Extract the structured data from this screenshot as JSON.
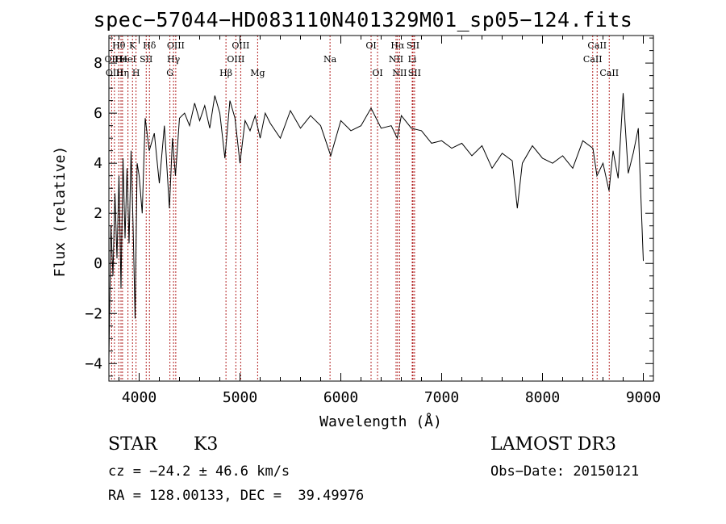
{
  "chart_data": {
    "type": "line",
    "title": "spec−57044−HD083110N401329M01_sp05−124.fits",
    "xlabel": "Wavelength (Å)",
    "ylabel": "Flux (relative)",
    "xlim": [
      3700,
      9100
    ],
    "ylim": [
      -4.7,
      9.1
    ],
    "xticks": [
      4000,
      5000,
      6000,
      7000,
      8000,
      9000
    ],
    "xtick_labels": [
      "4000",
      "5000",
      "6000",
      "7000",
      "8000",
      "9000"
    ],
    "yticks": [
      -4,
      -2,
      0,
      2,
      4,
      6,
      8
    ],
    "ytick_labels": [
      "−4",
      "−2",
      "0",
      "2",
      "4",
      "6",
      "8"
    ],
    "series": [
      {
        "name": "flux",
        "x": [
          3700,
          3720,
          3740,
          3760,
          3780,
          3800,
          3820,
          3840,
          3860,
          3880,
          3900,
          3920,
          3940,
          3960,
          3980,
          4000,
          4030,
          4060,
          4100,
          4150,
          4200,
          4250,
          4300,
          4330,
          4360,
          4400,
          4450,
          4500,
          4550,
          4600,
          4650,
          4700,
          4750,
          4800,
          4850,
          4900,
          4950,
          5000,
          5050,
          5100,
          5150,
          5200,
          5250,
          5300,
          5400,
          5500,
          5600,
          5700,
          5800,
          5900,
          6000,
          6100,
          6200,
          6300,
          6400,
          6500,
          6560,
          6600,
          6700,
          6800,
          6900,
          7000,
          7100,
          7200,
          7300,
          7400,
          7500,
          7600,
          7700,
          7750,
          7800,
          7900,
          8000,
          8100,
          8200,
          8300,
          8400,
          8500,
          8540,
          8600,
          8660,
          8700,
          8750,
          8800,
          8850,
          8900,
          8950,
          9000
        ],
        "y": [
          -3.8,
          1.5,
          -0.5,
          2.8,
          0.2,
          3.5,
          -1.0,
          4.2,
          1.0,
          3.8,
          0.8,
          4.5,
          1.5,
          -2.2,
          4.0,
          3.5,
          2.0,
          5.8,
          4.5,
          5.2,
          3.2,
          5.5,
          2.2,
          5.0,
          3.5,
          5.8,
          6.0,
          5.5,
          6.4,
          5.7,
          6.3,
          5.4,
          6.7,
          6.0,
          4.2,
          6.5,
          5.8,
          4.0,
          5.7,
          5.3,
          5.9,
          5.0,
          6.0,
          5.6,
          5.0,
          6.1,
          5.4,
          5.9,
          5.5,
          4.3,
          5.7,
          5.3,
          5.5,
          6.2,
          5.4,
          5.5,
          5.0,
          5.9,
          5.4,
          5.3,
          4.8,
          4.9,
          4.6,
          4.8,
          4.3,
          4.7,
          3.8,
          4.4,
          4.1,
          2.2,
          4.0,
          4.7,
          4.2,
          4.0,
          4.3,
          3.8,
          4.9,
          4.6,
          3.5,
          4.0,
          2.9,
          4.5,
          3.4,
          6.8,
          3.6,
          4.4,
          5.4,
          0.1
        ]
      }
    ],
    "lines": [
      {
        "label": "Hθ",
        "x": 3798,
        "row": 0
      },
      {
        "label": "OII",
        "x": 3727,
        "row": 1
      },
      {
        "label": "OIII",
        "x": 3755,
        "row": 2
      },
      {
        "label": "He",
        "x": 3820,
        "row": 1
      },
      {
        "label": "Hη",
        "x": 3835,
        "row": 2
      },
      {
        "label": "K",
        "x": 3934,
        "row": 0
      },
      {
        "label": "HeI",
        "x": 3889,
        "row": 1
      },
      {
        "label": "SII",
        "x": 4070,
        "row": 1
      },
      {
        "label": "H",
        "x": 3969,
        "row": 2
      },
      {
        "label": "Hδ",
        "x": 4102,
        "row": 0
      },
      {
        "label": "OIII",
        "x": 4363,
        "row": 0
      },
      {
        "label": "Hγ",
        "x": 4341,
        "row": 1
      },
      {
        "label": "G",
        "x": 4305,
        "row": 2
      },
      {
        "label": "Hβ",
        "x": 4861,
        "row": 2
      },
      {
        "label": "OIII",
        "x": 5007,
        "row": 0
      },
      {
        "label": "OIII",
        "x": 4959,
        "row": 1
      },
      {
        "label": "Mg",
        "x": 5175,
        "row": 2
      },
      {
        "label": "Na",
        "x": 5893,
        "row": 1
      },
      {
        "label": "OI",
        "x": 6300,
        "row": 0
      },
      {
        "label": "OI",
        "x": 6364,
        "row": 2
      },
      {
        "label": "Hα",
        "x": 6563,
        "row": 0
      },
      {
        "label": "SII",
        "x": 6716,
        "row": 0
      },
      {
        "label": "NII",
        "x": 6548,
        "row": 1
      },
      {
        "label": "Li",
        "x": 6708,
        "row": 1
      },
      {
        "label": "NII",
        "x": 6583,
        "row": 2
      },
      {
        "label": "SII",
        "x": 6731,
        "row": 2
      },
      {
        "label": "CaII",
        "x": 8542,
        "row": 0
      },
      {
        "label": "CaII",
        "x": 8498,
        "row": 1
      },
      {
        "label": "CaII",
        "x": 8662,
        "row": 2
      }
    ]
  },
  "info": {
    "object_type": "STAR",
    "subclass": "K3",
    "survey": "LAMOST DR3",
    "cz": "cz = −24.2 ± 46.6 km/s",
    "obs_date": "Obs−Date: 20150121",
    "coords": "RA = 128.00133, DEC =  39.49976"
  },
  "colors": {
    "spectrum": "#000000",
    "line_marker": "#b22222",
    "axes": "#000000"
  }
}
